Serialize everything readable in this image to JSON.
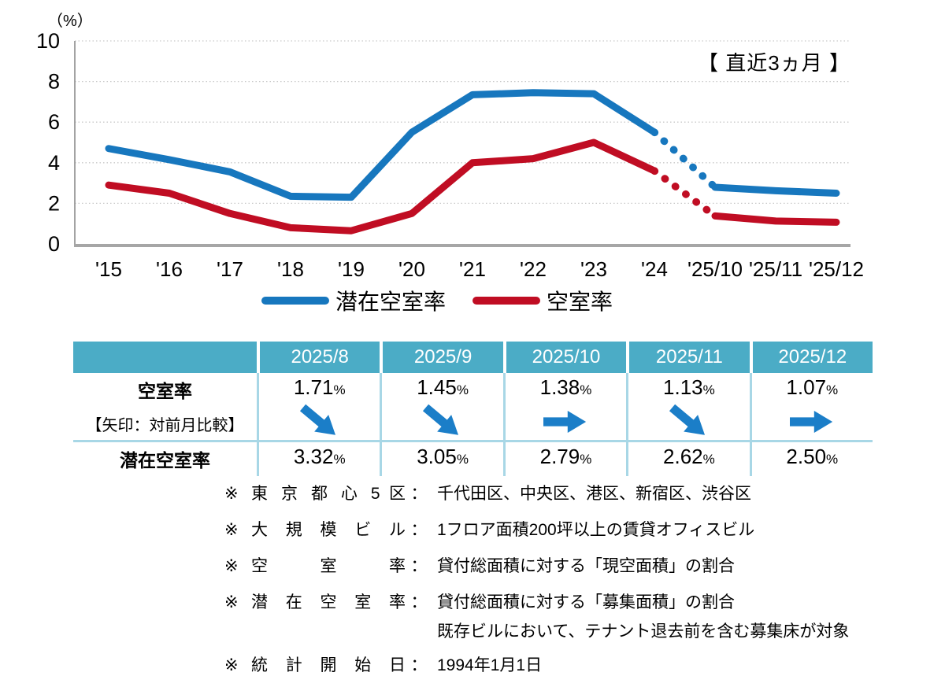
{
  "chart_data": {
    "type": "line",
    "title": "",
    "unit_label": "（%）",
    "annotation": "【 直近3ヵ月 】",
    "categories": [
      "'15",
      "'16",
      "'17",
      "'18",
      "'19",
      "'20",
      "'21",
      "'22",
      "'23",
      "'24",
      "'25/10",
      "'25/11",
      "'25/12"
    ],
    "series": [
      {
        "name": "潜在空室率",
        "color": "#1777BE",
        "values": [
          4.7,
          4.15,
          3.55,
          2.35,
          2.3,
          5.5,
          7.35,
          7.45,
          7.4,
          5.5,
          2.79,
          2.62,
          2.5
        ],
        "line_style": "solid, dotted between '24 and '25/10"
      },
      {
        "name": "空室率",
        "color": "#C00D23",
        "values": [
          2.9,
          2.5,
          1.5,
          0.8,
          0.65,
          1.5,
          4.0,
          4.2,
          5.0,
          3.6,
          1.38,
          1.13,
          1.07
        ],
        "line_style": "solid, dotted between '24 and '25/10"
      }
    ],
    "dotted_segment": {
      "from_index": 9,
      "to_index": 10
    },
    "ylim": [
      0,
      10
    ],
    "yticks": [
      0,
      2,
      4,
      6,
      8,
      10
    ],
    "grid": "horizontal dotted",
    "legend_position": "bottom center",
    "xlabel": "",
    "ylabel": "（%）"
  },
  "table": {
    "header_bg": "#4BACC6",
    "header_text_color": "#FFFFFF",
    "border_color": "#A8D7E6",
    "arrow_color": "#1B7EC8",
    "columns": [
      "2025/8",
      "2025/9",
      "2025/10",
      "2025/11",
      "2025/12"
    ],
    "rows": [
      {
        "label": "空室率",
        "sublabel": "【矢印：対前月比較】",
        "unit": "%",
        "values": [
          "1.71",
          "1.45",
          "1.38",
          "1.13",
          "1.07"
        ],
        "arrows": [
          "down-right",
          "down-right",
          "right",
          "down-right",
          "right"
        ]
      },
      {
        "label": "潜在空室率",
        "unit": "%",
        "values": [
          "3.32",
          "3.05",
          "2.79",
          "2.62",
          "2.50"
        ]
      }
    ]
  },
  "footnotes": [
    {
      "marker": "※",
      "label": "東 京 都 心 5 区",
      "colon": "：",
      "desc": "千代田区、中央区、港区、新宿区、渋谷区"
    },
    {
      "marker": "※",
      "label": "大 規 模 ビ ル",
      "colon": "：",
      "desc": "1フロア面積200坪以上の賃貸オフィスビル"
    },
    {
      "marker": "※",
      "label": "空 室 率",
      "colon": "：",
      "desc": "貸付総面積に対する「現空面積」の割合"
    },
    {
      "marker": "※",
      "label": "潜 在 空 室 率",
      "colon": "：",
      "desc": "貸付総面積に対する「募集面積」の割合",
      "desc2": "既存ビルにおいて、テナント退去前を含む募集床が対象"
    },
    {
      "marker": "※",
      "label": "統 計 開 始 日",
      "colon": "：",
      "desc": "1994年1月1日"
    }
  ]
}
